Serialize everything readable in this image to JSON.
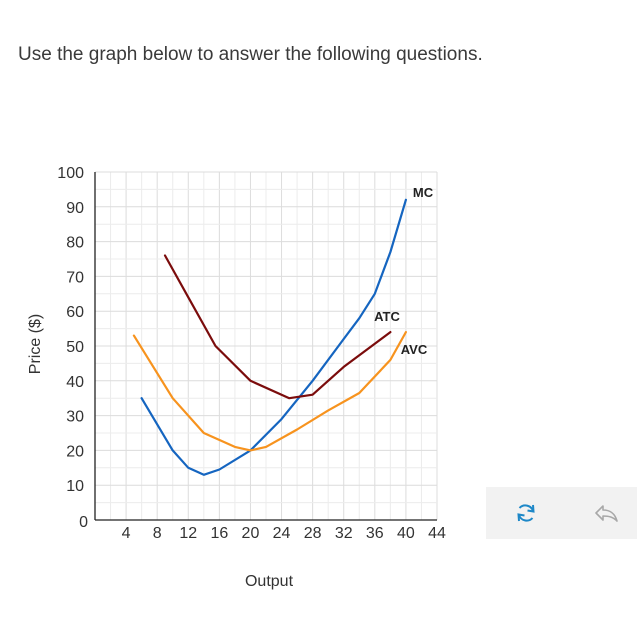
{
  "prompt": "Use the graph below to answer the following questions.",
  "chart_data": {
    "type": "line",
    "title": "",
    "xlabel": "Output",
    "ylabel": "Price ($)",
    "xlim": [
      0,
      44
    ],
    "ylim": [
      0,
      100
    ],
    "x_ticks": [
      4,
      8,
      12,
      16,
      20,
      24,
      28,
      32,
      36,
      40,
      44
    ],
    "y_ticks": [
      0,
      10,
      20,
      30,
      40,
      50,
      60,
      70,
      80,
      90,
      100
    ],
    "grid": true,
    "series": [
      {
        "name": "MC",
        "color": "#1565c0",
        "points": [
          [
            6,
            35
          ],
          [
            10,
            20
          ],
          [
            12,
            15
          ],
          [
            14,
            13
          ],
          [
            16,
            14.5
          ],
          [
            20,
            20
          ],
          [
            24,
            29
          ],
          [
            28,
            40
          ],
          [
            32,
            52
          ],
          [
            34,
            58
          ],
          [
            36,
            65
          ],
          [
            38,
            77
          ],
          [
            40,
            92
          ]
        ]
      },
      {
        "name": "ATC",
        "color": "#7b0c0c",
        "points": [
          [
            9,
            76
          ],
          [
            12,
            64
          ],
          [
            15.5,
            50
          ],
          [
            20,
            40
          ],
          [
            25,
            35
          ],
          [
            28,
            36
          ],
          [
            32,
            44
          ],
          [
            38,
            54
          ]
        ]
      },
      {
        "name": "AVC",
        "color": "#f7931e",
        "points": [
          [
            5,
            53
          ],
          [
            10,
            35
          ],
          [
            14,
            25
          ],
          [
            18,
            21
          ],
          [
            20,
            20
          ],
          [
            22,
            21
          ],
          [
            26,
            26
          ],
          [
            30,
            31.5
          ],
          [
            34,
            36.5
          ],
          [
            38,
            46
          ],
          [
            40,
            54
          ]
        ]
      }
    ]
  },
  "tools": {
    "reset_icon": "reset-icon",
    "undo_icon": "undo-icon"
  }
}
